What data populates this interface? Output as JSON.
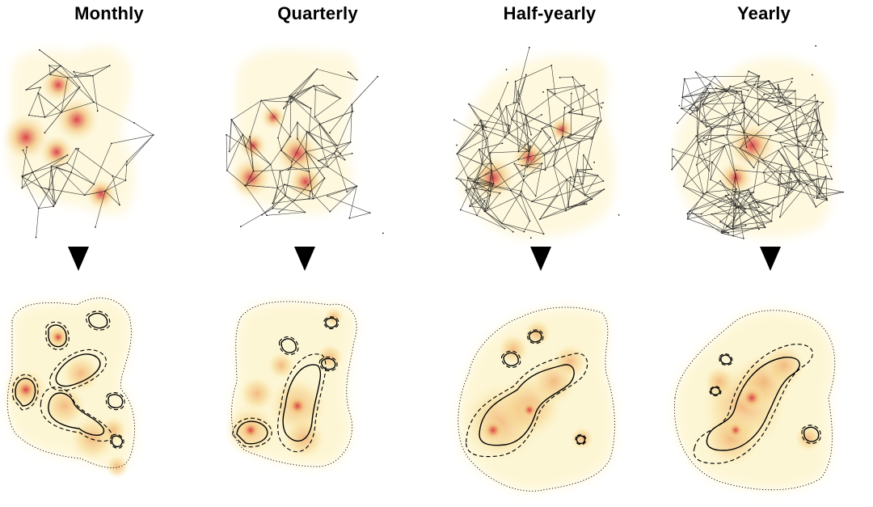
{
  "panels": [
    {
      "id": "monthly",
      "title": "Monthly",
      "edges": 110,
      "hotspots": 5
    },
    {
      "id": "quarterly",
      "title": "Quarterly",
      "edges": 180,
      "hotspots": 5
    },
    {
      "id": "halfyearly",
      "title": "Half-yearly",
      "edges": 300,
      "hotspots": 3
    },
    {
      "id": "yearly",
      "title": "Yearly",
      "edges": 420,
      "hotspots": 2
    }
  ],
  "arrow_icon": "down-triangle-icon",
  "colors": {
    "density_low": "#fdf3c4",
    "density_mid": "#f2c27a",
    "density_high": "#d7303a",
    "network_edge": "#1a1a1a",
    "contour": "#000000"
  }
}
